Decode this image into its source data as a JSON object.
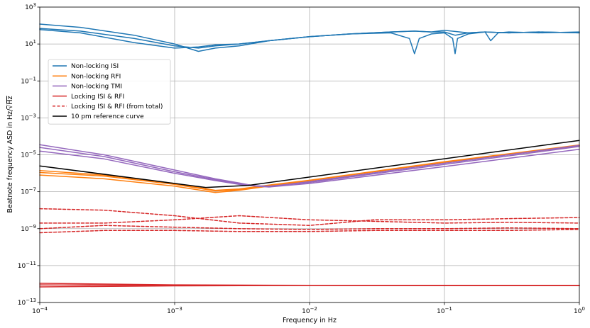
{
  "chart_data": {
    "type": "line",
    "xlabel": "Frequency in Hz",
    "ylabel_main": "Beatnote frequency ASD in Hz/",
    "ylabel_sqrt": "√Hz",
    "xscale": "log",
    "yscale": "log",
    "xlim": [
      0.0001,
      1
    ],
    "ylim": [
      1e-13,
      1000
    ],
    "grid": true,
    "legend_position": "upper-left",
    "x_ticks": [
      {
        "value": 0.0001,
        "base": "10",
        "exp": "−4"
      },
      {
        "value": 0.001,
        "base": "10",
        "exp": "−3"
      },
      {
        "value": 0.01,
        "base": "10",
        "exp": "−2"
      },
      {
        "value": 0.1,
        "base": "10",
        "exp": "−1"
      },
      {
        "value": 1,
        "base": "10",
        "exp": "0"
      }
    ],
    "y_ticks": [
      {
        "value": 1e-13,
        "base": "10",
        "exp": "−13"
      },
      {
        "value": 1e-11,
        "base": "10",
        "exp": "−11"
      },
      {
        "value": 1e-09,
        "base": "10",
        "exp": "−9"
      },
      {
        "value": 1e-07,
        "base": "10",
        "exp": "−7"
      },
      {
        "value": 1e-05,
        "base": "10",
        "exp": "−5"
      },
      {
        "value": 0.001,
        "base": "10",
        "exp": "−3"
      },
      {
        "value": 0.1,
        "base": "10",
        "exp": "−1"
      },
      {
        "value": 10,
        "base": "10",
        "exp": "1"
      },
      {
        "value": 1000,
        "base": "10",
        "exp": "3"
      }
    ],
    "legend": [
      {
        "label": "Non-locking ISI",
        "color": "#1f77b4",
        "dash": "solid"
      },
      {
        "label": "Non-locking RFI",
        "color": "#ff7f0e",
        "dash": "solid"
      },
      {
        "label": "Non-locking TMI",
        "color": "#9467bd",
        "dash": "solid"
      },
      {
        "label": "Locking ISI & RFI",
        "color": "#d62728",
        "dash": "solid"
      },
      {
        "label": "Locking ISI & RFI (from total)",
        "color": "#d62728",
        "dash": "dashed"
      },
      {
        "label": "10 pm reference curve",
        "color": "#000000",
        "dash": "solid"
      }
    ],
    "series": [
      {
        "group": 0,
        "x": [
          0.0001,
          0.0002,
          0.0005,
          0.001,
          0.0015,
          0.002,
          0.003,
          0.005,
          0.01,
          0.02,
          0.04,
          0.06,
          0.08,
          0.1,
          0.15,
          0.2,
          0.3,
          0.5,
          1
        ],
        "y": [
          120,
          80,
          30,
          10,
          4,
          6,
          8,
          15,
          25,
          35,
          45,
          50,
          45,
          55,
          40,
          45,
          40,
          45,
          40
        ]
      },
      {
        "group": 0,
        "x": [
          0.0001,
          0.0002,
          0.0005,
          0.001,
          0.0015,
          0.002,
          0.003,
          0.005,
          0.01,
          0.02,
          0.04,
          0.055,
          0.06,
          0.065,
          0.08,
          0.1,
          0.115,
          0.12,
          0.125,
          0.15,
          0.2,
          0.3,
          0.5,
          1
        ],
        "y": [
          70,
          50,
          20,
          8,
          6,
          8,
          10,
          15,
          25,
          35,
          40,
          20,
          3,
          20,
          35,
          40,
          20,
          3,
          20,
          35,
          45,
          40,
          45,
          40
        ]
      },
      {
        "group": 0,
        "x": [
          0.0001,
          0.0002,
          0.0005,
          0.001,
          0.0015,
          0.002,
          0.003,
          0.005,
          0.01,
          0.02,
          0.04,
          0.06,
          0.08,
          0.1,
          0.12,
          0.15,
          0.2,
          0.22,
          0.25,
          0.3,
          0.5,
          1
        ],
        "y": [
          60,
          40,
          12,
          6,
          7,
          9,
          10,
          15,
          25,
          35,
          45,
          50,
          45,
          45,
          30,
          40,
          45,
          15,
          40,
          45,
          40,
          45
        ]
      },
      {
        "group": 1,
        "x": [
          0.0001,
          0.0003,
          0.001,
          0.002,
          0.003,
          0.005,
          0.01,
          0.1,
          1
        ],
        "y": [
          1.1e-06,
          7e-07,
          2.5e-07,
          1.1e-07,
          1.3e-07,
          2.2e-07,
          4e-07,
          4e-06,
          3.2e-05
        ]
      },
      {
        "group": 1,
        "x": [
          0.0001,
          0.0003,
          0.001,
          0.002,
          0.003,
          0.005,
          0.01,
          0.1,
          1
        ],
        "y": [
          8e-07,
          5e-07,
          2e-07,
          9e-08,
          1.2e-07,
          2e-07,
          4e-07,
          4e-06,
          3e-05
        ]
      },
      {
        "group": 1,
        "x": [
          0.0001,
          0.0003,
          0.001,
          0.002,
          0.003,
          0.005,
          0.01,
          0.1,
          1
        ],
        "y": [
          1.4e-06,
          8e-07,
          2.8e-07,
          1.2e-07,
          1.4e-07,
          2.3e-07,
          4.2e-07,
          4.2e-06,
          3.4e-05
        ]
      },
      {
        "group": 2,
        "x": [
          0.0001,
          0.0003,
          0.001,
          0.002,
          0.003,
          0.004,
          0.005,
          0.01,
          0.1,
          1
        ],
        "y": [
          3.5e-05,
          1e-05,
          1.5e-06,
          5e-07,
          3e-07,
          2e-07,
          1.9e-07,
          3.5e-07,
          3.5e-06,
          3.2e-05
        ]
      },
      {
        "group": 2,
        "x": [
          0.0001,
          0.0003,
          0.001,
          0.002,
          0.003,
          0.004,
          0.005,
          0.01,
          0.1,
          1
        ],
        "y": [
          2.5e-05,
          8e-06,
          1.2e-06,
          4.5e-07,
          2.8e-07,
          2.1e-07,
          2e-07,
          3.2e-07,
          3e-06,
          2.8e-05
        ]
      },
      {
        "group": 2,
        "x": [
          0.0001,
          0.0003,
          0.001,
          0.002,
          0.003,
          0.004,
          0.005,
          0.01,
          0.1,
          1
        ],
        "y": [
          1.6e-05,
          6e-06,
          1e-06,
          4e-07,
          2.5e-07,
          2e-07,
          1.8e-07,
          2.8e-07,
          2.3e-06,
          2e-05
        ]
      },
      {
        "group": 3,
        "x": [
          0.0001,
          0.001,
          0.01,
          0.1,
          1
        ],
        "y": [
          9e-13,
          8.5e-13,
          8.5e-13,
          8.5e-13,
          8.3e-13
        ]
      },
      {
        "group": 3,
        "x": [
          0.0001,
          0.001,
          0.01,
          0.1,
          1
        ],
        "y": [
          7e-13,
          8e-13,
          8.3e-13,
          8.3e-13,
          8.3e-13
        ]
      },
      {
        "group": 3,
        "x": [
          0.0001,
          0.001,
          0.01,
          0.1,
          1
        ],
        "y": [
          1.1e-12,
          9e-13,
          8.5e-13,
          8.3e-13,
          8.3e-13
        ]
      },
      {
        "group": 4,
        "x": [
          0.0001,
          0.0003,
          0.001,
          0.003,
          0.01,
          0.03,
          0.1,
          0.3,
          1
        ],
        "y": [
          1.2e-08,
          1e-08,
          5e-09,
          2e-09,
          1.5e-09,
          3e-09,
          3e-09,
          3.5e-09,
          4e-09
        ]
      },
      {
        "group": 4,
        "x": [
          0.0001,
          0.0003,
          0.001,
          0.003,
          0.01,
          0.03,
          0.1,
          0.3,
          1
        ],
        "y": [
          2e-09,
          2e-09,
          3e-09,
          5e-09,
          3e-09,
          2.5e-09,
          2e-09,
          2.2e-09,
          2e-09
        ]
      },
      {
        "group": 4,
        "x": [
          0.0001,
          0.0003,
          0.001,
          0.003,
          0.01,
          0.03,
          0.1,
          0.3,
          1
        ],
        "y": [
          1e-09,
          1.5e-09,
          1.2e-09,
          1e-09,
          9e-10,
          1e-09,
          1e-09,
          1.1e-09,
          1e-09
        ]
      },
      {
        "group": 4,
        "x": [
          0.0001,
          0.0003,
          0.001,
          0.003,
          0.01,
          0.03,
          0.1,
          0.3,
          1
        ],
        "y": [
          6e-10,
          8e-10,
          8e-10,
          7e-10,
          7e-10,
          8e-10,
          8e-10,
          8e-10,
          9e-10
        ]
      },
      {
        "group": 5,
        "x": [
          0.0001,
          0.0017,
          0.0035,
          1
        ],
        "y": [
          2.5e-06,
          1.7e-07,
          2.2e-07,
          6e-05
        ]
      }
    ]
  }
}
